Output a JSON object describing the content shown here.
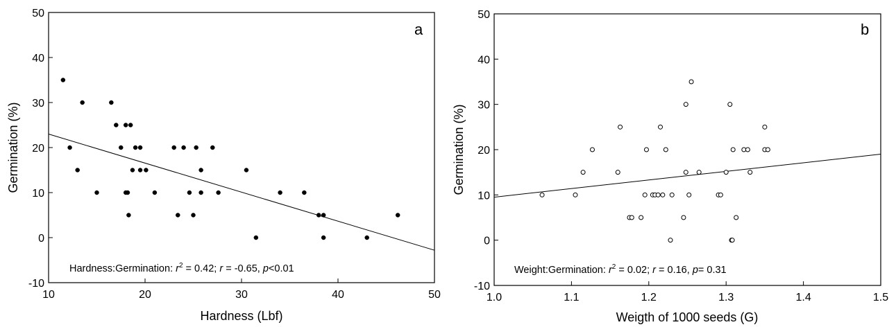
{
  "chart_data": [
    {
      "type": "scatter",
      "panel_label": "a",
      "xlabel": "Hardness (Lbf)",
      "ylabel": "Germination (%)",
      "xlim": [
        10,
        50
      ],
      "ylim": [
        -10,
        50
      ],
      "xticks": [
        "10",
        "20",
        "30",
        "40",
        "50"
      ],
      "yticks": [
        "-10",
        "0",
        "10",
        "20",
        "30",
        "40",
        "50"
      ],
      "marker": "filled",
      "points": [
        [
          11.5,
          35
        ],
        [
          12.2,
          20
        ],
        [
          13.0,
          15
        ],
        [
          13.5,
          30
        ],
        [
          15.0,
          10
        ],
        [
          16.5,
          30
        ],
        [
          17.0,
          25
        ],
        [
          17.5,
          20
        ],
        [
          18.0,
          25
        ],
        [
          18.0,
          10
        ],
        [
          18.2,
          10
        ],
        [
          18.3,
          5
        ],
        [
          18.5,
          25
        ],
        [
          18.7,
          15
        ],
        [
          19.0,
          20
        ],
        [
          19.5,
          20
        ],
        [
          19.5,
          15
        ],
        [
          20.1,
          15
        ],
        [
          21.0,
          10
        ],
        [
          23.0,
          20
        ],
        [
          23.4,
          5
        ],
        [
          24.0,
          20
        ],
        [
          24.6,
          10
        ],
        [
          25.0,
          5
        ],
        [
          25.3,
          20
        ],
        [
          25.8,
          15
        ],
        [
          25.8,
          10
        ],
        [
          27.0,
          20
        ],
        [
          27.6,
          10
        ],
        [
          30.5,
          15
        ],
        [
          31.5,
          0
        ],
        [
          34.0,
          10
        ],
        [
          36.5,
          10
        ],
        [
          38.0,
          5
        ],
        [
          38.5,
          5
        ],
        [
          38.5,
          0
        ],
        [
          43.0,
          0
        ],
        [
          46.2,
          5
        ]
      ],
      "fit_line": {
        "x": [
          10,
          50
        ],
        "y": [
          23,
          -2.8
        ]
      },
      "annotation": {
        "prefix": "Hardness:Germination: ",
        "r2_label": "r",
        "r2_sup": "2",
        "r2_value": " = 0.42; ",
        "r_label": "r",
        "r_value": " = -0.65, ",
        "p_label": "p",
        "p_value": "<0.01"
      }
    },
    {
      "type": "scatter",
      "panel_label": "b",
      "xlabel": "Weigth of 1000 seeds (G)",
      "ylabel": "Germination (%)",
      "xlim": [
        1.0,
        1.5
      ],
      "ylim": [
        -10,
        50
      ],
      "xticks": [
        "1.0",
        "1.1",
        "1.2",
        "1.3",
        "1.4",
        "1.5"
      ],
      "yticks": [
        "-10",
        "0",
        "10",
        "20",
        "30",
        "40",
        "50"
      ],
      "marker": "open",
      "points": [
        [
          1.062,
          10
        ],
        [
          1.105,
          10
        ],
        [
          1.115,
          15
        ],
        [
          1.127,
          20
        ],
        [
          1.16,
          15
        ],
        [
          1.163,
          25
        ],
        [
          1.175,
          5
        ],
        [
          1.178,
          5
        ],
        [
          1.19,
          5
        ],
        [
          1.195,
          10
        ],
        [
          1.197,
          20
        ],
        [
          1.205,
          10
        ],
        [
          1.208,
          10
        ],
        [
          1.212,
          10
        ],
        [
          1.215,
          25
        ],
        [
          1.218,
          10
        ],
        [
          1.222,
          20
        ],
        [
          1.228,
          0
        ],
        [
          1.23,
          10
        ],
        [
          1.245,
          5
        ],
        [
          1.248,
          15
        ],
        [
          1.248,
          30
        ],
        [
          1.252,
          10
        ],
        [
          1.255,
          35
        ],
        [
          1.265,
          15
        ],
        [
          1.29,
          10
        ],
        [
          1.293,
          10
        ],
        [
          1.3,
          15
        ],
        [
          1.305,
          30
        ],
        [
          1.307,
          0
        ],
        [
          1.308,
          0
        ],
        [
          1.309,
          20
        ],
        [
          1.313,
          5
        ],
        [
          1.323,
          20
        ],
        [
          1.328,
          20
        ],
        [
          1.331,
          15
        ],
        [
          1.35,
          25
        ],
        [
          1.35,
          20
        ],
        [
          1.354,
          20
        ]
      ],
      "fit_line": {
        "x": [
          1.0,
          1.5
        ],
        "y": [
          9.5,
          19.0
        ]
      },
      "annotation": {
        "prefix": "Weight:Germination: ",
        "r2_label": "r",
        "r2_sup": "2",
        "r2_value": " = 0.02; ",
        "r_label": "r",
        "r_value": " = 0.16, ",
        "p_label": "p",
        "p_value": "= 0.31"
      }
    }
  ]
}
